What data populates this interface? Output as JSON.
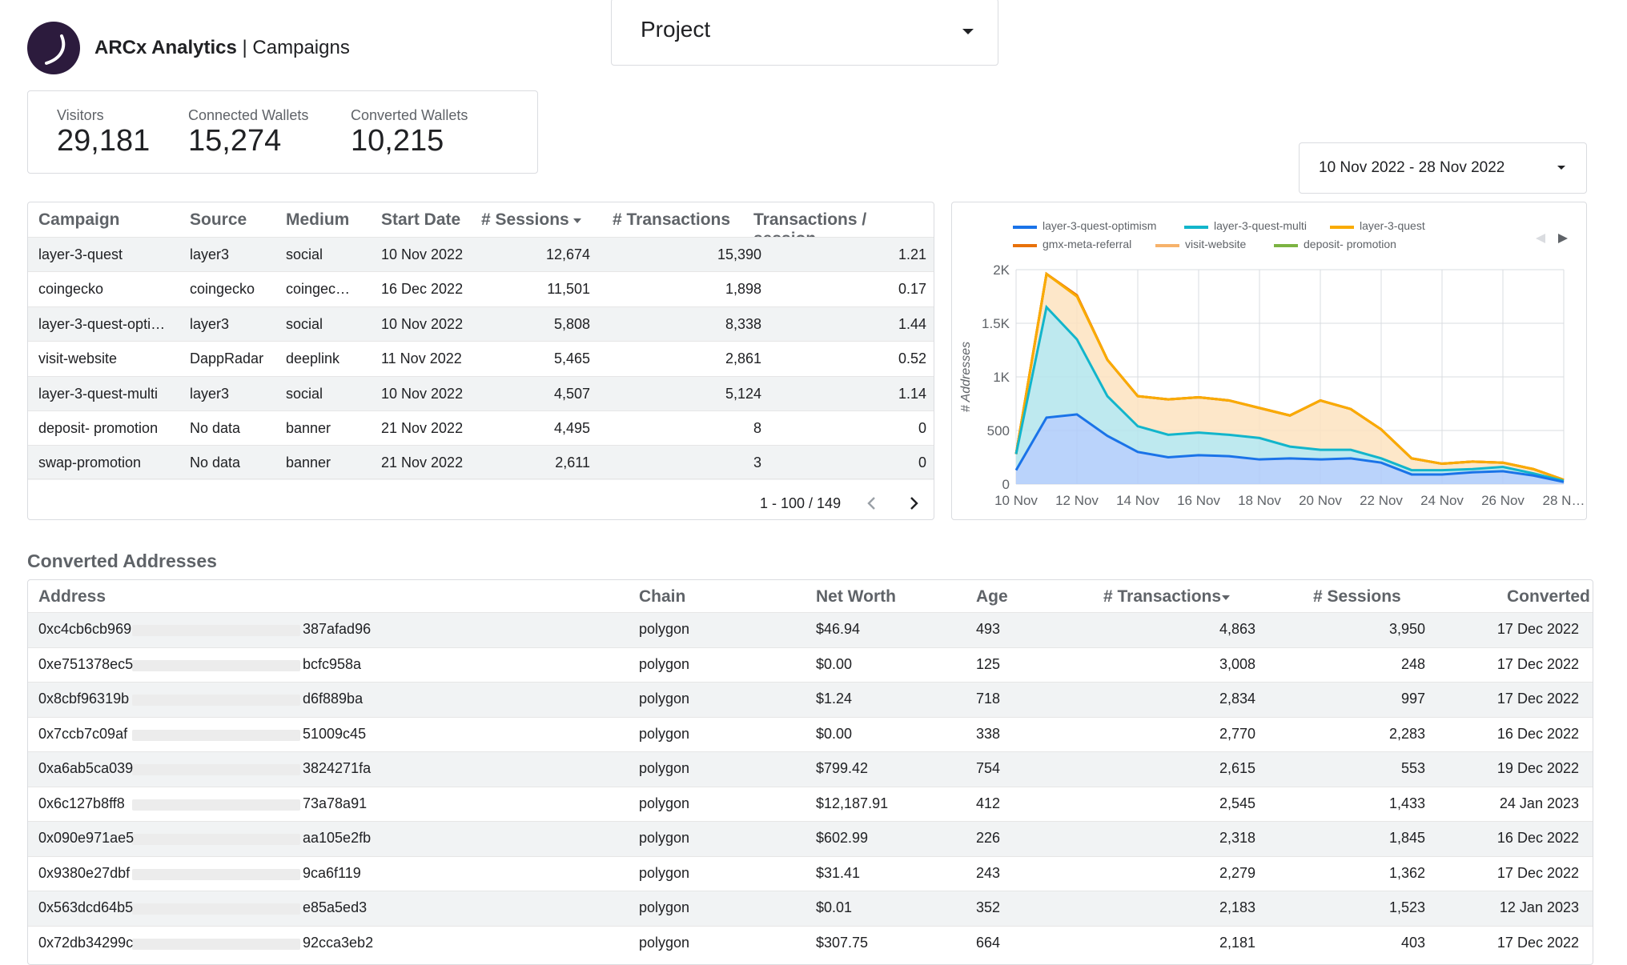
{
  "header": {
    "brand_name": "ARCx Analytics",
    "brand_sep": " | ",
    "page_name": "Campaigns",
    "project_label": "Project",
    "date_range": "10 Nov 2022 - 28 Nov 2022"
  },
  "kpis": [
    {
      "label": "Visitors",
      "value": "29,181"
    },
    {
      "label": "Connected Wallets",
      "value": "15,274"
    },
    {
      "label": "Converted Wallets",
      "value": "10,215"
    }
  ],
  "campaigns": {
    "columns": [
      "Campaign",
      "Source",
      "Medium",
      "Start Date",
      "# Sessions",
      "# Transactions",
      "Transactions / session"
    ],
    "rows": [
      [
        "layer-3-quest",
        "layer3",
        "social",
        "10 Nov 2022",
        "12,674",
        "15,390",
        "1.21"
      ],
      [
        "coingecko",
        "coingecko",
        "coingec…",
        "16 Dec 2022",
        "11,501",
        "1,898",
        "0.17"
      ],
      [
        "layer-3-quest-opti…",
        "layer3",
        "social",
        "10 Nov 2022",
        "5,808",
        "8,338",
        "1.44"
      ],
      [
        "visit-website",
        "DappRadar",
        "deeplink",
        "11 Nov 2022",
        "5,465",
        "2,861",
        "0.52"
      ],
      [
        "layer-3-quest-multi",
        "layer3",
        "social",
        "10 Nov 2022",
        "4,507",
        "5,124",
        "1.14"
      ],
      [
        "deposit- promotion",
        "No data",
        "banner",
        "21 Nov 2022",
        "4,495",
        "8",
        "0"
      ],
      [
        "swap-promotion",
        "No data",
        "banner",
        "21 Nov 2022",
        "2,611",
        "3",
        "0"
      ]
    ],
    "pagination": "1 - 100 / 149"
  },
  "chart_data": {
    "type": "area",
    "ylabel": "# Addresses",
    "xlabel": "",
    "ylim": [
      0,
      2000
    ],
    "y_ticks": [
      "0",
      "500",
      "1K",
      "1.5K",
      "2K"
    ],
    "x_tick_labels": [
      "10 Nov",
      "12 Nov",
      "14 Nov",
      "16 Nov",
      "18 Nov",
      "20 Nov",
      "22 Nov",
      "24 Nov",
      "26 Nov",
      "28 N…"
    ],
    "x": [
      "10 Nov",
      "11 Nov",
      "12 Nov",
      "13 Nov",
      "14 Nov",
      "15 Nov",
      "16 Nov",
      "17 Nov",
      "18 Nov",
      "19 Nov",
      "20 Nov",
      "21 Nov",
      "22 Nov",
      "23 Nov",
      "24 Nov",
      "25 Nov",
      "26 Nov",
      "27 Nov",
      "28 Nov"
    ],
    "stacked": true,
    "grid": true,
    "legend_position": "top",
    "series": [
      {
        "name": "layer-3-quest-optimism",
        "color": "#1a73e8",
        "fill": "#aecbfa",
        "values": [
          130,
          620,
          650,
          450,
          300,
          250,
          270,
          260,
          230,
          240,
          230,
          240,
          200,
          90,
          90,
          110,
          120,
          80,
          20
        ]
      },
      {
        "name": "layer-3-quest-multi",
        "color": "#12b5cb",
        "fill": "#b3e5ec",
        "values": [
          150,
          1030,
          700,
          370,
          240,
          210,
          210,
          200,
          200,
          110,
          90,
          80,
          40,
          40,
          40,
          30,
          40,
          20,
          10
        ]
      },
      {
        "name": "layer-3-quest",
        "color": "#f9ab00",
        "fill": "#fde3bf",
        "values": [
          0,
          310,
          400,
          340,
          280,
          330,
          330,
          320,
          280,
          290,
          460,
          380,
          270,
          110,
          60,
          70,
          40,
          40,
          10
        ]
      },
      {
        "name": "gmx-meta-referral",
        "color": "#e8710a",
        "fill": "#f9c9a8",
        "values": [
          0,
          0,
          10,
          0,
          0,
          0,
          0,
          0,
          0,
          0,
          0,
          0,
          0,
          0,
          0,
          0,
          0,
          0,
          0
        ]
      },
      {
        "name": "visit-website",
        "color": "#f6b26b",
        "fill": "#fbe2c4",
        "values": [
          0,
          0,
          0,
          0,
          0,
          0,
          0,
          0,
          0,
          0,
          0,
          0,
          0,
          0,
          0,
          0,
          0,
          0,
          0
        ]
      },
      {
        "name": "deposit- promotion",
        "color": "#7cb342",
        "fill": "#d7ecc4",
        "values": [
          0,
          0,
          0,
          0,
          0,
          0,
          0,
          0,
          0,
          0,
          0,
          0,
          0,
          0,
          0,
          0,
          0,
          0,
          0
        ]
      }
    ],
    "total_color": "#e8664a"
  },
  "converted": {
    "title": "Converted Addresses",
    "columns": [
      "Address",
      "Chain",
      "Net Worth",
      "Age",
      "# Transactions",
      "# Sessions",
      "Converted"
    ],
    "rows": [
      [
        "0xc4cb6cb969",
        "387afad96",
        "polygon",
        "$46.94",
        "493",
        "4,863",
        "3,950",
        "17 Dec 2022"
      ],
      [
        "0xe751378ec5",
        "bcfc958a",
        "polygon",
        "$0.00",
        "125",
        "3,008",
        "248",
        "17 Dec 2022"
      ],
      [
        "0x8cbf96319b",
        "d6f889ba",
        "polygon",
        "$1.24",
        "718",
        "2,834",
        "997",
        "17 Dec 2022"
      ],
      [
        "0x7ccb7c09af",
        "51009c45",
        "polygon",
        "$0.00",
        "338",
        "2,770",
        "2,283",
        "16 Dec 2022"
      ],
      [
        "0xa6ab5ca039",
        "3824271fa",
        "polygon",
        "$799.42",
        "754",
        "2,615",
        "553",
        "19 Dec 2022"
      ],
      [
        "0x6c127b8ff8",
        "73a78a91",
        "polygon",
        "$12,187.91",
        "412",
        "2,545",
        "1,433",
        "24 Jan 2023"
      ],
      [
        "0x090e971ae5",
        "aa105e2fb",
        "polygon",
        "$602.99",
        "226",
        "2,318",
        "1,845",
        "16 Dec 2022"
      ],
      [
        "0x9380e27dbf",
        "9ca6f119",
        "polygon",
        "$31.41",
        "243",
        "2,279",
        "1,362",
        "17 Dec 2022"
      ],
      [
        "0x563dcd64b5",
        "e85a5ed3",
        "polygon",
        "$0.01",
        "352",
        "2,183",
        "1,523",
        "12 Jan 2023"
      ],
      [
        "0x72db34299c",
        "92cca3eb2",
        "polygon",
        "$307.75",
        "664",
        "2,181",
        "403",
        "17 Dec 2022"
      ]
    ]
  }
}
